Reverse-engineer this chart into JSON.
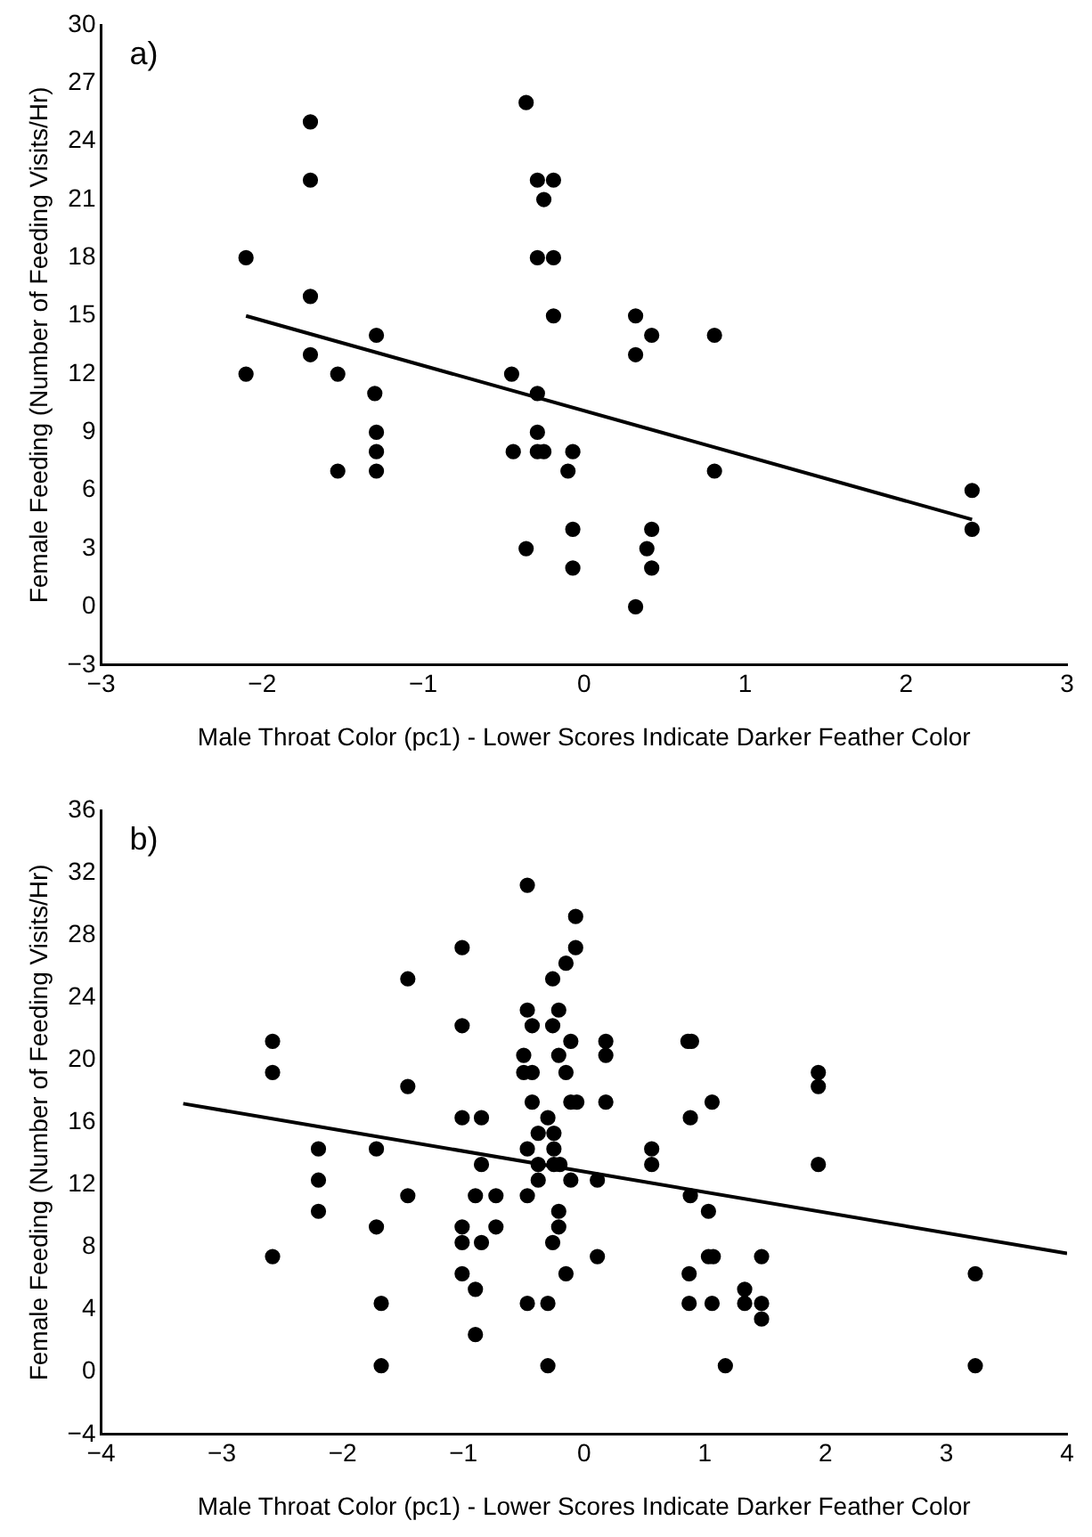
{
  "chart_data": [
    {
      "type": "scatter",
      "xlabel": "Male Throat Color (pc1) - Lower Scores Indicate Darker Feather Color",
      "ylabel": "Female Feeding (Number of Feeding Visits/Hr)",
      "annotations": [
        "a)"
      ],
      "xlim": [
        -3,
        3
      ],
      "xticks": [
        {
          "value": -3,
          "label": "−3"
        },
        {
          "value": -2,
          "label": "−2"
        },
        {
          "value": -1,
          "label": "−1"
        },
        0,
        1,
        2,
        3
      ],
      "ylim": [
        -3,
        30
      ],
      "yticks": [
        {
          "value": -3,
          "label": "−3"
        },
        0,
        3,
        6,
        9,
        12,
        15,
        18,
        21,
        24,
        27,
        30
      ],
      "series": [
        {
          "marker": "circle",
          "color": "#000000",
          "x": [
            -2.1,
            -2.1,
            -1.7,
            -1.7,
            -1.7,
            -1.7,
            -1.53,
            -1.53,
            -1.29,
            -1.3,
            -1.29,
            -1.29,
            -1.29,
            -0.36,
            -0.36,
            -0.45,
            -0.44,
            -0.29,
            -0.19,
            -0.25,
            -0.29,
            -0.19,
            -0.19,
            -0.29,
            -0.29,
            -0.29,
            -0.25,
            -0.07,
            -0.1,
            -0.07,
            -0.07,
            0.32,
            0.32,
            0.42,
            0.81,
            0.81,
            0.42,
            0.39,
            0.42,
            0.32,
            2.41,
            2.41
          ],
          "values": [
            18,
            12,
            25,
            22,
            16,
            13,
            12,
            7,
            14,
            11,
            9,
            8,
            7,
            26,
            3,
            12,
            8,
            22,
            22,
            21,
            18,
            18,
            15,
            11,
            9,
            8,
            8,
            8,
            7,
            4,
            2,
            15,
            13,
            14,
            14,
            7,
            4,
            3,
            2,
            0,
            6,
            4
          ]
        },
        {
          "type": "line",
          "marker": "none",
          "color": "#000000",
          "x": [
            -2.1,
            2.41
          ],
          "values": [
            15,
            4.5
          ]
        }
      ]
    },
    {
      "type": "scatter",
      "xlabel": "Male Throat Color (pc1) - Lower Scores Indicate Darker Feather Color",
      "ylabel": "Female Feeding (Number of Feeding Visits/Hr)",
      "annotations": [
        "b)"
      ],
      "xlim": [
        -4,
        4
      ],
      "xticks": [
        {
          "value": -4,
          "label": "−4"
        },
        {
          "value": -3,
          "label": "−3"
        },
        {
          "value": -2,
          "label": "−2"
        },
        {
          "value": -1,
          "label": "−1"
        },
        0,
        1,
        2,
        3,
        4
      ],
      "ylim": [
        -4,
        36
      ],
      "yticks": [
        {
          "value": -4,
          "label": "−4"
        },
        0,
        4,
        8,
        12,
        16,
        20,
        24,
        28,
        32,
        36
      ],
      "series": [
        {
          "marker": "circle",
          "color": "#000000",
          "x": [
            -2.58,
            -2.58,
            -2.58,
            -2.2,
            -2.2,
            -2.2,
            -1.72,
            -1.72,
            -1.68,
            -1.68,
            -1.46,
            -1.46,
            -1.46,
            -1.01,
            -1.01,
            -1.01,
            -1.01,
            -1.01,
            -1.01,
            -0.9,
            -0.9,
            -0.85,
            -0.85,
            -0.85,
            -0.9,
            -0.73,
            -0.73,
            -0.47,
            -0.47,
            -0.43,
            -0.5,
            -0.5,
            -0.43,
            -0.43,
            -0.47,
            -0.47,
            -0.47,
            -0.3,
            -0.3,
            -0.3,
            -0.38,
            -0.38,
            -0.38,
            -0.07,
            -0.07,
            -0.15,
            -0.26,
            -0.21,
            -0.26,
            -0.11,
            0.18,
            0.18,
            -0.21,
            -0.15,
            -0.11,
            -0.06,
            0.18,
            -0.25,
            -0.25,
            -0.25,
            -0.2,
            -0.11,
            0.11,
            -0.21,
            -0.21,
            -0.26,
            -0.15,
            0.11,
            0.56,
            0.56,
            0.86,
            0.89,
            0.88,
            1.06,
            0.88,
            1.03,
            1.03,
            1.07,
            0.87,
            0.87,
            1.06,
            1.17,
            1.33,
            1.33,
            1.47,
            1.47,
            1.47,
            1.94,
            1.94,
            1.94,
            3.24,
            3.24
          ],
          "values": [
            21.2,
            19.2,
            7.4,
            14.3,
            12.3,
            10.3,
            14.3,
            9.3,
            4.4,
            0.4,
            25.2,
            18.3,
            11.3,
            27.2,
            22.2,
            16.3,
            9.3,
            8.3,
            6.3,
            5.3,
            2.4,
            16.3,
            13.3,
            8.3,
            11.3,
            11.3,
            9.3,
            31.2,
            23.2,
            22.2,
            20.3,
            19.2,
            19.2,
            17.3,
            14.3,
            11.3,
            4.4,
            16.3,
            4.4,
            0.4,
            15.3,
            13.3,
            12.3,
            29.2,
            27.2,
            26.2,
            25.2,
            23.2,
            22.2,
            21.2,
            21.2,
            20.3,
            20.3,
            19.2,
            17.3,
            17.3,
            17.3,
            15.3,
            14.3,
            13.3,
            13.3,
            12.3,
            12.3,
            10.3,
            9.3,
            8.3,
            6.3,
            7.4,
            14.3,
            13.3,
            21.2,
            21.2,
            16.3,
            17.3,
            11.3,
            10.3,
            7.4,
            7.4,
            6.3,
            4.4,
            4.4,
            0.4,
            5.3,
            4.4,
            7.4,
            4.4,
            3.4,
            19.2,
            18.3,
            13.3,
            6.3,
            0.4
          ]
        },
        {
          "type": "line",
          "marker": "none",
          "color": "#000000",
          "x": [
            -3.32,
            4
          ],
          "values": [
            17.2,
            7.6
          ]
        }
      ]
    }
  ]
}
